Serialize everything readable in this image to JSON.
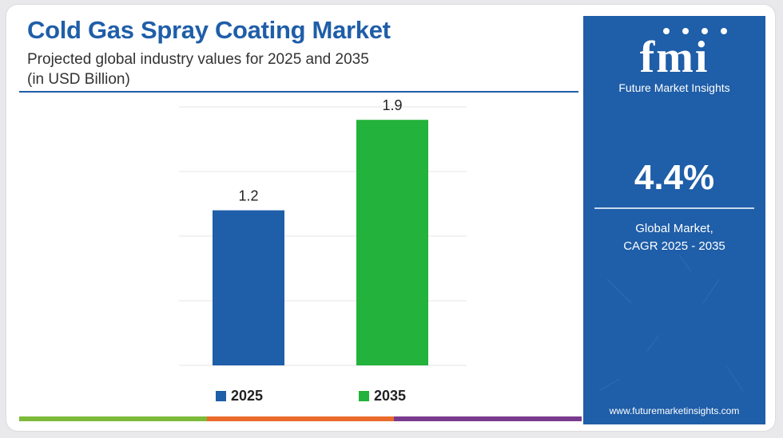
{
  "header": {
    "title": "Cold Gas Spray Coating Market",
    "subtitle_line1": "Projected global industry values for 2025 and 2035",
    "subtitle_line2": "(in USD Billion)"
  },
  "colors": {
    "brand_blue": "#1f5ea8",
    "bar_2025": "#1f5ea8",
    "bar_2035": "#23b23b",
    "strip": [
      "#7dba3a",
      "#e96a2a",
      "#7a3b8f"
    ]
  },
  "chart_data": {
    "type": "bar",
    "categories": [
      "2025",
      "2035"
    ],
    "values": [
      1.2,
      1.9
    ],
    "data_labels": [
      "1.2",
      "1.9"
    ],
    "colors": [
      "#1f5ea8",
      "#23b23b"
    ],
    "ylim": [
      0,
      2
    ],
    "grid": true,
    "legend": {
      "placement": "bottom",
      "entries": [
        "2025",
        "2035"
      ]
    }
  },
  "side_panel": {
    "logo_text": "fmi",
    "logo_subtitle": "Future Market Insights",
    "cagr_value": "4.4%",
    "cagr_label_line1": "Global Market,",
    "cagr_label_line2": "CAGR 2025 - 2035",
    "url": "www.futuremarketinsights.com"
  }
}
